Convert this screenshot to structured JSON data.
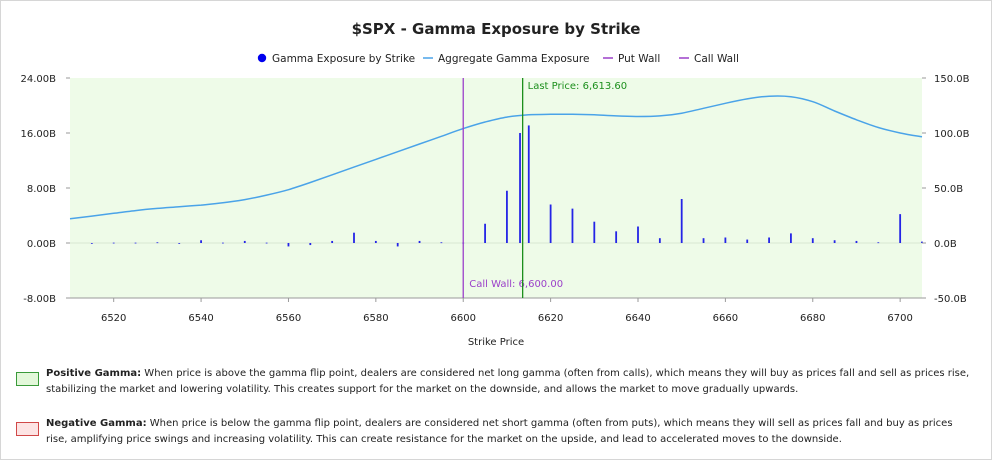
{
  "chart_data": {
    "type": "bar",
    "title": "$SPX - Gamma Exposure by Strike",
    "xlabel": "Strike Price",
    "xlim": [
      6510,
      6705
    ],
    "x_ticks": [
      "6520",
      "6540",
      "6560",
      "6580",
      "6600",
      "6620",
      "6640",
      "6660",
      "6680",
      "6700"
    ],
    "y_left_lim": [
      -8,
      24
    ],
    "y_left_ticks": [
      "-8.00B",
      "0.00B",
      "8.00B",
      "16.00B",
      "24.00B"
    ],
    "y_right_lim": [
      -50,
      150
    ],
    "y_right_ticks": [
      "-50.0B",
      "0.0B",
      "50.0B",
      "100.0B",
      "150.0B"
    ],
    "legend": {
      "placement": "top-center",
      "items": [
        {
          "label": "Gamma Exposure by Strike",
          "marker": "dot",
          "color": "#0000ee"
        },
        {
          "label": "Aggregate Gamma Exposure",
          "marker": "line",
          "color": "#4aa3e8"
        },
        {
          "label": "Put Wall",
          "marker": "line",
          "color": "#9b40c9"
        },
        {
          "label": "Call Wall",
          "marker": "line",
          "color": "#9b40c9"
        }
      ]
    },
    "colors": {
      "bars": "#2424e6",
      "aggregate": "#4aa3e8",
      "put_wall": "#9b40c9",
      "call_wall": "#9b40c9",
      "last_price": "#1c8f1c",
      "positive_region": "#eefbe8"
    },
    "series": [
      {
        "name": "Gamma Exposure by Strike",
        "axis": "left",
        "unit": "B",
        "x": [
          6515,
          6520,
          6525,
          6530,
          6535,
          6540,
          6545,
          6550,
          6555,
          6560,
          6565,
          6570,
          6575,
          6580,
          6585,
          6590,
          6595,
          6600,
          6605,
          6610,
          6613,
          6615,
          6620,
          6625,
          6630,
          6635,
          6640,
          6645,
          6650,
          6655,
          6660,
          6665,
          6670,
          6675,
          6680,
          6685,
          6690,
          6695,
          6700,
          6705
        ],
        "values": [
          -0.1,
          0.05,
          0.05,
          0.1,
          -0.1,
          0.4,
          0.05,
          0.3,
          0.05,
          -0.5,
          -0.3,
          0.3,
          1.5,
          0.3,
          -0.5,
          0.3,
          0.1,
          0.05,
          2.8,
          7.6,
          16.0,
          17.1,
          5.6,
          5.0,
          3.1,
          1.7,
          2.4,
          0.7,
          6.4,
          0.7,
          0.8,
          0.5,
          0.8,
          1.4,
          0.7,
          0.4,
          0.3,
          0.1,
          4.2,
          0.2
        ]
      },
      {
        "name": "Aggregate Gamma Exposure",
        "axis": "right",
        "unit": "B",
        "x": [
          6510,
          6515,
          6520,
          6525,
          6530,
          6535,
          6540,
          6545,
          6550,
          6555,
          6560,
          6565,
          6570,
          6575,
          6580,
          6585,
          6590,
          6595,
          6600,
          6605,
          6610,
          6615,
          6620,
          6625,
          6630,
          6635,
          6640,
          6645,
          6650,
          6655,
          6660,
          6665,
          6670,
          6675,
          6680,
          6685,
          6690,
          6695,
          6700,
          6705
        ],
        "values": [
          22,
          24.5,
          27,
          29.5,
          31.5,
          33,
          34.5,
          36.5,
          39.5,
          43.5,
          48.5,
          55,
          62,
          69,
          76,
          83,
          90,
          97,
          104,
          110,
          114.5,
          116.5,
          117,
          117,
          116.5,
          115.5,
          115,
          115.5,
          118,
          122.5,
          127,
          131,
          133.5,
          133,
          128.5,
          120,
          112,
          105,
          100,
          96.5
        ]
      }
    ],
    "markers": {
      "last_price": {
        "label": "Last Price: 6,613.60",
        "x": 6613.6
      },
      "call_wall": {
        "label": "Call Wall: 6,600.00",
        "x": 6600
      },
      "put_wall": {
        "label": "",
        "x": 6613.6
      }
    }
  },
  "notes": [
    {
      "heading": "Positive Gamma:",
      "text": " When price is above the gamma flip point, dealers are considered net long gamma (often from calls), which means they will buy as prices fall and sell as prices rise, stabilizing the market and lowering volatility. This creates support for the market on the downside, and allows the market to move gradually upwards.",
      "swatch_fill": "#e3f8da",
      "swatch_border": "#3a9a3a"
    },
    {
      "heading": "Negative Gamma:",
      "text": " When price is below the gamma flip point, dealers are considered net short gamma (often from puts), which means they will sell as prices fall and buy as prices rise, amplifying price swings and increasing volatility. This can create resistance for the market on the upside, and lead to accelerated moves to the downside.",
      "swatch_fill": "#fde4e4",
      "swatch_border": "#d04848"
    }
  ]
}
